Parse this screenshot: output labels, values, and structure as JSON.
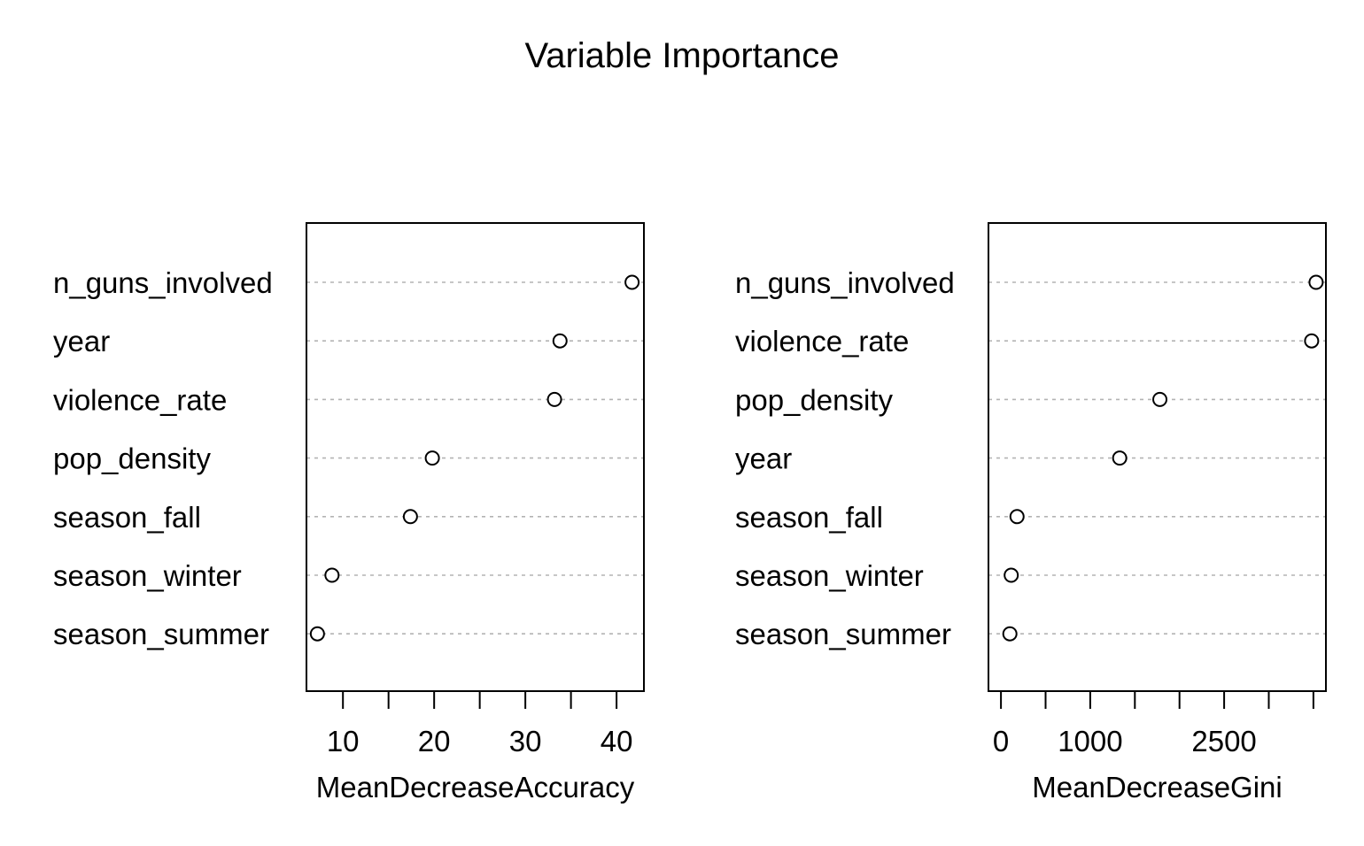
{
  "chart_data": {
    "title": "Variable Importance",
    "panels": [
      {
        "type": "scatter",
        "xlabel": "MeanDecreaseAccuracy",
        "categories": [
          "n_guns_involved",
          "year",
          "violence_rate",
          "pop_density",
          "season_fall",
          "season_winter",
          "season_summer"
        ],
        "values": [
          41.7,
          33.8,
          33.2,
          19.8,
          17.4,
          8.8,
          7.2
        ],
        "xlim": [
          6.0,
          43.0
        ],
        "ticks": [
          10,
          15,
          20,
          25,
          30,
          35,
          40
        ],
        "tick_labels": [
          "10",
          "",
          "20",
          "",
          "30",
          "",
          "40"
        ],
        "grid": "dotted horizontal guide per variable"
      },
      {
        "type": "scatter",
        "xlabel": "MeanDecreaseGini",
        "categories": [
          "n_guns_involved",
          "violence_rate",
          "pop_density",
          "year",
          "season_fall",
          "season_winter",
          "season_summer"
        ],
        "values": [
          3530,
          3480,
          1780,
          1330,
          180,
          115,
          100
        ],
        "xlim": [
          -140,
          3640
        ],
        "ticks": [
          0,
          500,
          1000,
          1500,
          2000,
          2500,
          3000,
          3500
        ],
        "tick_labels": [
          "0",
          "",
          "1000",
          "",
          "",
          "2500",
          "",
          ""
        ],
        "grid": "dotted horizontal guide per variable"
      }
    ]
  }
}
